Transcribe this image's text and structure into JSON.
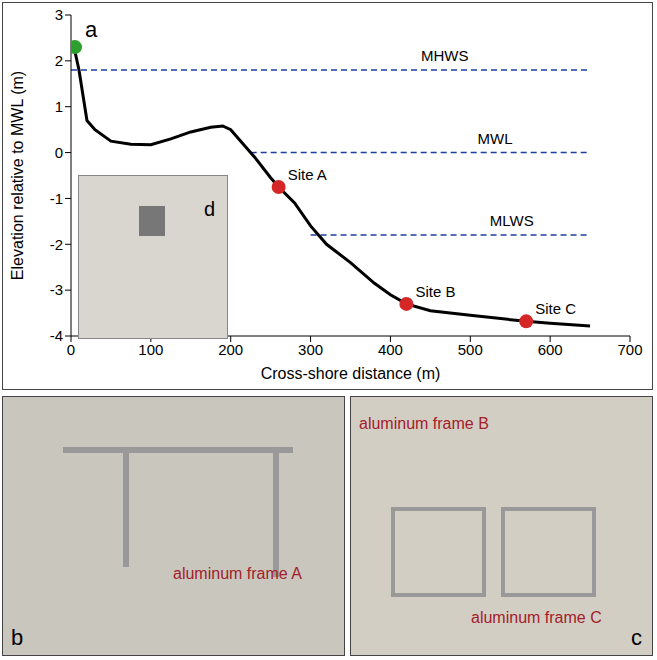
{
  "chart_data": {
    "type": "line",
    "panel_label": "a",
    "x_label": "Cross-shore distance (m)",
    "y_label": "Elevation relative to MWL (m)",
    "xlim": [
      0,
      700
    ],
    "xticks": [
      0,
      100,
      200,
      300,
      400,
      500,
      600,
      700
    ],
    "ylim": [
      -4,
      3
    ],
    "yticks": [
      -4,
      -3,
      -2,
      -1,
      0,
      1,
      2,
      3
    ],
    "color": "#000000",
    "x": [
      0,
      5,
      10,
      20,
      30,
      50,
      75,
      100,
      125,
      150,
      175,
      190,
      200,
      215,
      230,
      250,
      260,
      280,
      300,
      320,
      350,
      380,
      400,
      420,
      450,
      500,
      570,
      600,
      650
    ],
    "values": [
      2.35,
      2.2,
      1.8,
      0.7,
      0.5,
      0.25,
      0.18,
      0.17,
      0.3,
      0.45,
      0.55,
      0.58,
      0.5,
      0.2,
      -0.1,
      -0.55,
      -0.75,
      -1.1,
      -1.6,
      -2.0,
      -2.4,
      -2.85,
      -3.1,
      -3.3,
      -3.45,
      -3.55,
      -3.68,
      -3.72,
      -3.78
    ],
    "reference_lines": [
      {
        "label": "MHWS",
        "value": 1.8,
        "x_start": 0,
        "x_end": 650,
        "color": "#1f3fa0"
      },
      {
        "label": "MWL",
        "value": 0,
        "x_start": 225,
        "x_end": 650,
        "color": "#1f3fa0"
      },
      {
        "label": "MLWS",
        "value": -1.8,
        "x_start": 300,
        "x_end": 650,
        "color": "#1f3fa0"
      }
    ],
    "sites": [
      {
        "label": "Site A",
        "x": 260,
        "y": -0.75
      },
      {
        "label": "Site B",
        "x": 420,
        "y": -3.3
      },
      {
        "label": "Site C",
        "x": 570,
        "y": -3.68
      }
    ],
    "sites_color": "#d62728",
    "start_point": {
      "x": 5,
      "y": 2.3,
      "color": "#2ca02c"
    }
  },
  "inset": {
    "label": "d"
  },
  "photos": [
    {
      "label": "b",
      "annotations": [
        "aluminum frame A"
      ]
    },
    {
      "label": "c",
      "annotations": [
        "aluminum frame B",
        "aluminum frame C"
      ]
    }
  ]
}
